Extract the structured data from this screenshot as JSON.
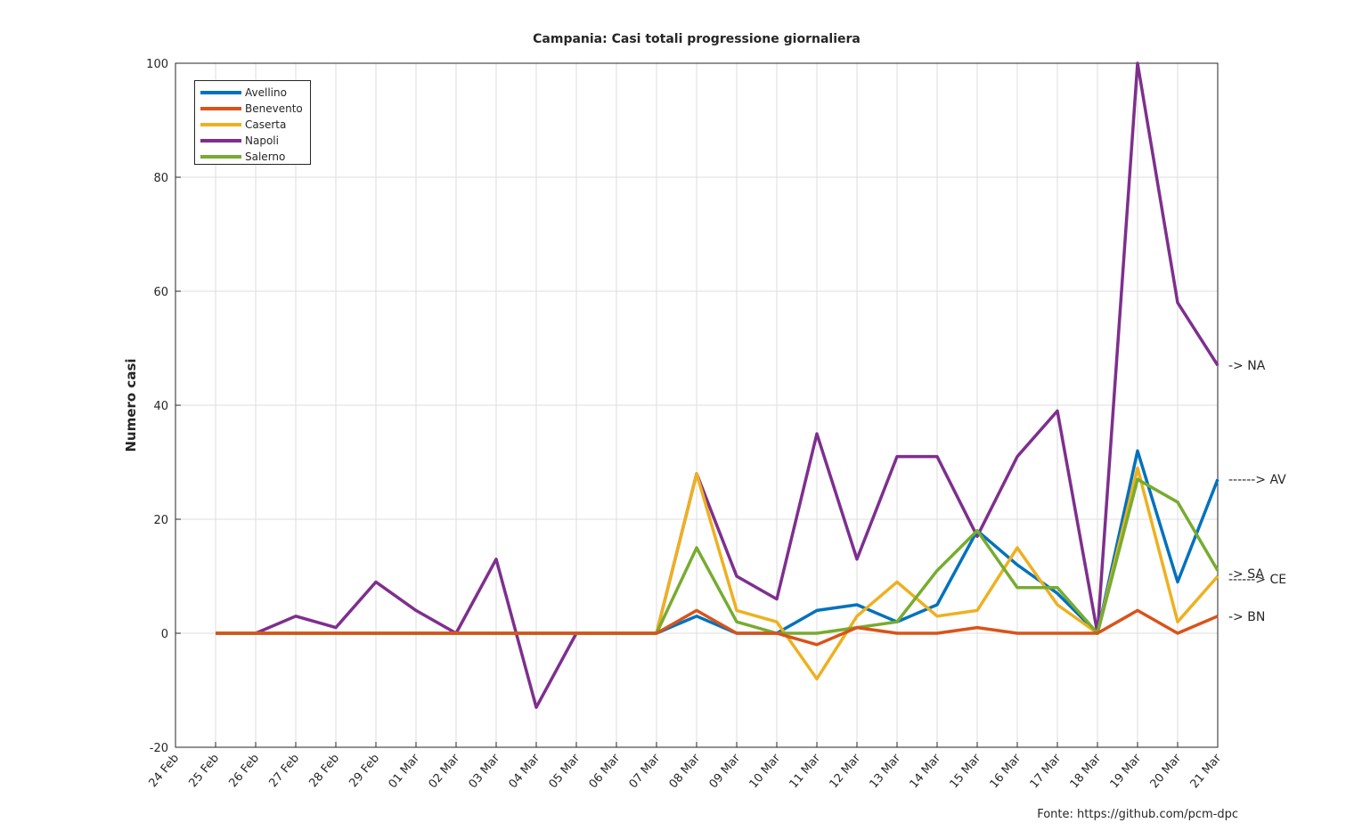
{
  "source_note": "Fonte: https://github.com/pcm-dpc",
  "chart_data": {
    "type": "line",
    "title": "Campania: Casi totali progressione giornaliera",
    "xlabel": "",
    "ylabel": "Numero casi",
    "ylim": [
      -20,
      100
    ],
    "yticks": [
      -20,
      0,
      20,
      40,
      60,
      80,
      100
    ],
    "grid": true,
    "legend_position": "top-left",
    "categories": [
      "24 Feb",
      "25 Feb",
      "26 Feb",
      "27 Feb",
      "28 Feb",
      "29 Feb",
      "01 Mar",
      "02 Mar",
      "03 Mar",
      "04 Mar",
      "05 Mar",
      "06 Mar",
      "07 Mar",
      "08 Mar",
      "09 Mar",
      "10 Mar",
      "11 Mar",
      "12 Mar",
      "13 Mar",
      "14 Mar",
      "15 Mar",
      "16 Mar",
      "17 Mar",
      "18 Mar",
      "19 Mar",
      "20 Mar",
      "21 Mar"
    ],
    "series": [
      {
        "name": "Avellino",
        "color": "#0072BD",
        "values": [
          null,
          0,
          0,
          0,
          0,
          0,
          0,
          0,
          0,
          0,
          0,
          0,
          0,
          3,
          0,
          0,
          4,
          5,
          2,
          5,
          18,
          12,
          7,
          0,
          32,
          9,
          27
        ],
        "end_label": "------> AV"
      },
      {
        "name": "Benevento",
        "color": "#D95319",
        "values": [
          null,
          0,
          0,
          0,
          0,
          0,
          0,
          0,
          0,
          0,
          0,
          0,
          0,
          4,
          0,
          0,
          -2,
          1,
          0,
          0,
          1,
          0,
          0,
          0,
          4,
          0,
          3
        ],
        "end_label": "-> BN"
      },
      {
        "name": "Caserta",
        "color": "#EDB120",
        "values": [
          null,
          0,
          0,
          0,
          0,
          0,
          0,
          0,
          0,
          0,
          0,
          0,
          0,
          28,
          4,
          2,
          -8,
          3,
          9,
          3,
          4,
          15,
          5,
          0,
          29,
          2,
          10
        ],
        "end_label": "------> CE"
      },
      {
        "name": "Napoli",
        "color": "#7E2F8E",
        "values": [
          null,
          0,
          0,
          3,
          1,
          9,
          4,
          0,
          13,
          -13,
          0,
          0,
          0,
          28,
          10,
          6,
          35,
          13,
          31,
          31,
          17,
          31,
          39,
          0,
          100,
          58,
          47
        ],
        "end_label": "-> NA"
      },
      {
        "name": "Salerno",
        "color": "#77AC30",
        "values": [
          null,
          0,
          0,
          0,
          0,
          0,
          0,
          0,
          0,
          0,
          0,
          0,
          0,
          15,
          2,
          0,
          0,
          1,
          2,
          11,
          18,
          8,
          8,
          0,
          27,
          23,
          11
        ],
        "end_label": "-> SA"
      }
    ]
  }
}
